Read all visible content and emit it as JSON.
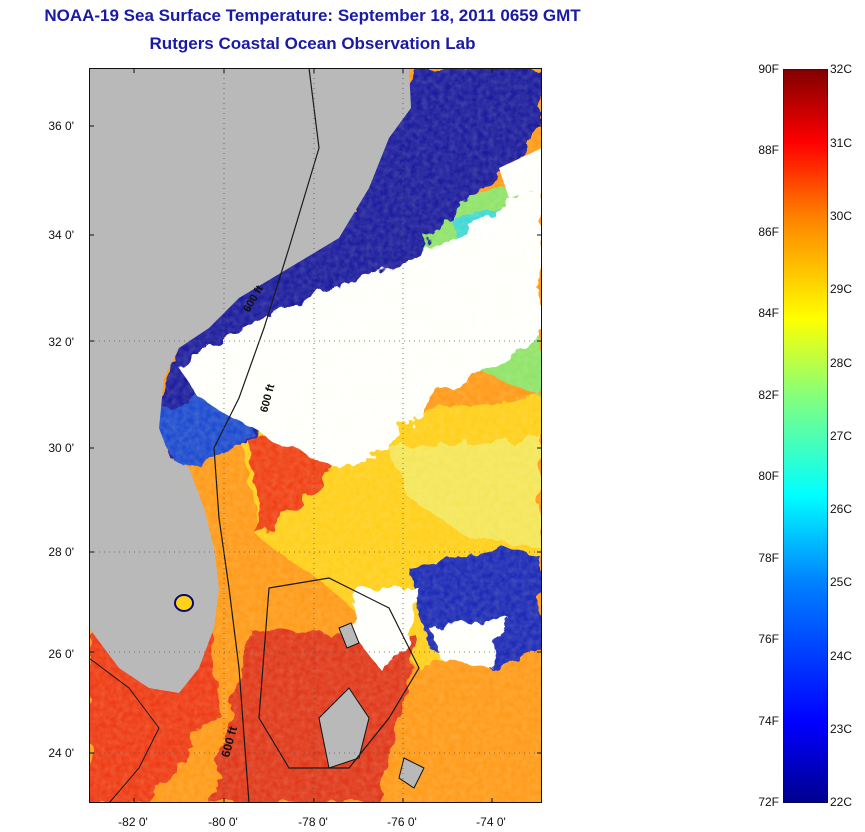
{
  "title": {
    "line1": "NOAA-19 Sea Surface Temperature:  September 18, 2011 0659 GMT",
    "line2": "Rutgers Coastal Ocean Observation Lab"
  },
  "map": {
    "lat_labels": [
      "36 0'",
      "34 0'",
      "32 0'",
      "30 0'",
      "28 0'",
      "26 0'",
      "24 0'"
    ],
    "lon_labels": [
      "-82 0'",
      "-80 0'",
      "-78 0'",
      "-76 0'",
      "-74 0'"
    ],
    "contour_labels": [
      "600 ft",
      "600 ft",
      "600 ft"
    ],
    "land_color": "#b9b9b9",
    "cloud_color": "#ffffff"
  },
  "colorbar": {
    "fahrenheit_labels": [
      "90F",
      "88F",
      "86F",
      "84F",
      "82F",
      "80F",
      "78F",
      "76F",
      "74F",
      "72F"
    ],
    "celsius_labels": [
      "32C",
      "31C",
      "30C",
      "29C",
      "28C",
      "27C",
      "26C",
      "25C",
      "24C",
      "23C",
      "22C"
    ],
    "colormap": [
      "#00008f",
      "#0000ff",
      "#0080ff",
      "#00ffff",
      "#80ff80",
      "#ffff00",
      "#ff8000",
      "#ff0000",
      "#800000"
    ]
  }
}
